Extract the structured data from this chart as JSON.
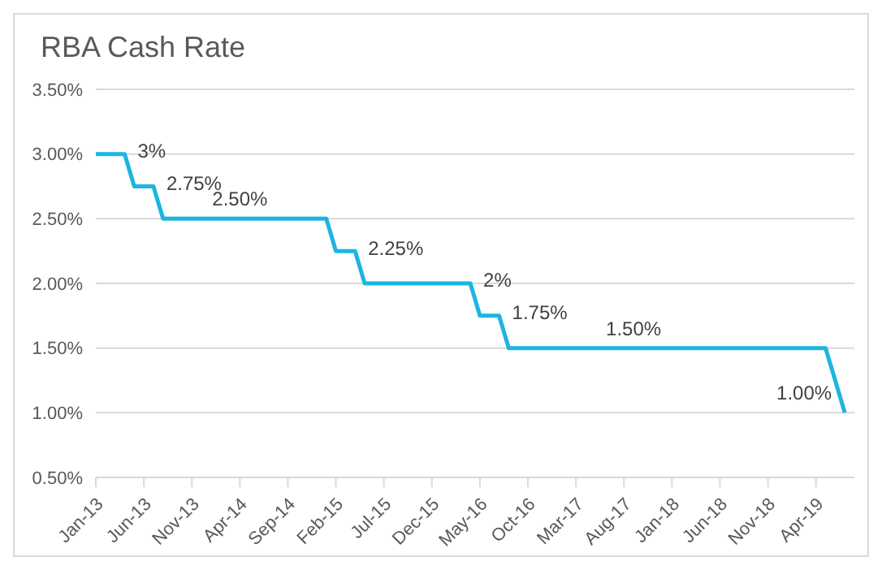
{
  "chart_data": {
    "type": "line",
    "title": "RBA Cash Rate",
    "series": [
      {
        "color": "#1cb5e0",
        "x": [
          "2013-01",
          "2013-04",
          "2013-05",
          "2013-07",
          "2013-08",
          "2015-01",
          "2015-02",
          "2015-04",
          "2015-05",
          "2016-04",
          "2016-05",
          "2016-07",
          "2016-08",
          "2019-05",
          "2019-07"
        ],
        "values": [
          3.0,
          3.0,
          2.75,
          2.75,
          2.5,
          2.5,
          2.25,
          2.25,
          2.0,
          2.0,
          1.75,
          1.75,
          1.5,
          1.5,
          1.0
        ]
      }
    ],
    "xlim": [
      "2013-01",
      "2019-08"
    ],
    "xticks": [
      {
        "value": "2013-01",
        "label": "Jan-13"
      },
      {
        "value": "2013-06",
        "label": "Jun-13"
      },
      {
        "value": "2013-11",
        "label": "Nov-13"
      },
      {
        "value": "2014-04",
        "label": "Apr-14"
      },
      {
        "value": "2014-09",
        "label": "Sep-14"
      },
      {
        "value": "2015-02",
        "label": "Feb-15"
      },
      {
        "value": "2015-07",
        "label": "Jul-15"
      },
      {
        "value": "2015-12",
        "label": "Dec-15"
      },
      {
        "value": "2016-05",
        "label": "May-16"
      },
      {
        "value": "2016-10",
        "label": "Oct-16"
      },
      {
        "value": "2017-03",
        "label": "Mar-17"
      },
      {
        "value": "2017-08",
        "label": "Aug-17"
      },
      {
        "value": "2018-01",
        "label": "Jan-18"
      },
      {
        "value": "2018-06",
        "label": "Jun-18"
      },
      {
        "value": "2018-11",
        "label": "Nov-18"
      },
      {
        "value": "2019-04",
        "label": "Apr-19"
      }
    ],
    "ylim": [
      0.5,
      3.5
    ],
    "yticks": [
      {
        "value": 0.5,
        "label": "0.50%"
      },
      {
        "value": 1.0,
        "label": "1.00%"
      },
      {
        "value": 1.5,
        "label": "1.50%"
      },
      {
        "value": 2.0,
        "label": "2.00%"
      },
      {
        "value": 2.5,
        "label": "2.50%"
      },
      {
        "value": 3.0,
        "label": "3.00%"
      },
      {
        "value": 3.5,
        "label": "3.50%"
      }
    ],
    "grid": "y",
    "marker": "none",
    "line_style": "solid",
    "annotations": [
      {
        "text": "3%",
        "x": "2013-04",
        "y": 3.0
      },
      {
        "text": "2.75%",
        "x": "2013-07",
        "y": 2.75
      },
      {
        "text": "2.50%",
        "x": "2014-04",
        "y": 2.5
      },
      {
        "text": "2.25%",
        "x": "2015-04",
        "y": 2.25
      },
      {
        "text": "2%",
        "x": "2016-04",
        "y": 2.0
      },
      {
        "text": "1.75%",
        "x": "2016-07",
        "y": 1.75
      },
      {
        "text": "1.50%",
        "x": "2017-09",
        "y": 1.5
      },
      {
        "text": "1.00%",
        "x": "2019-07",
        "y": 1.0
      }
    ]
  }
}
